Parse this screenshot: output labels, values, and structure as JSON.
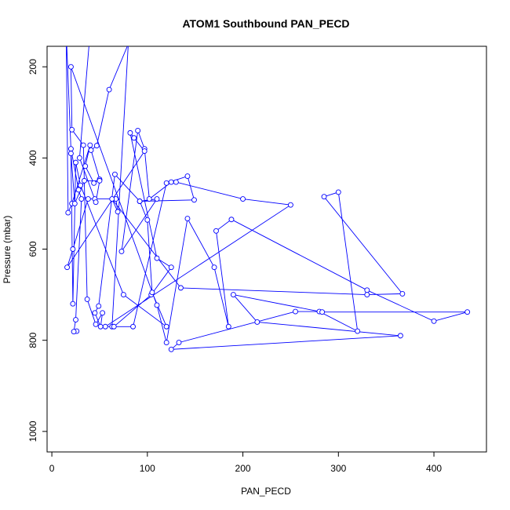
{
  "chart_data": {
    "type": "line",
    "title": "ATOM1 Southbound PAN_PECD",
    "xlabel": "PAN_PECD",
    "ylabel": "Pressure (mbar)",
    "xlim": [
      -5,
      455
    ],
    "ylim": [
      1045,
      155
    ],
    "y_reversed": true,
    "grid": false,
    "line_color": "#0000ff",
    "marker": "open-circle",
    "xticks": [
      0,
      100,
      200,
      300,
      400
    ],
    "yticks": [
      200,
      400,
      600,
      800,
      1000
    ],
    "series": [
      {
        "points": [
          [
            26,
            780
          ],
          [
            23,
            781
          ],
          [
            25,
            755
          ],
          [
            31,
            490
          ],
          [
            28,
            470
          ],
          [
            20,
            380
          ],
          [
            15,
            120
          ],
          [
            17,
            520
          ],
          [
            21,
            500
          ],
          [
            40,
            372
          ],
          [
            35,
            418
          ],
          [
            44,
            455
          ],
          [
            50,
            447
          ],
          [
            41,
            383
          ],
          [
            47,
            373
          ],
          [
            60,
            250
          ],
          [
            80,
            150
          ],
          [
            63,
            770
          ],
          [
            85,
            770
          ],
          [
            120,
            455
          ],
          [
            142,
            440
          ],
          [
            149,
            492
          ],
          [
            92,
            495
          ],
          [
            110,
            490
          ],
          [
            73,
            605
          ],
          [
            90,
            340
          ],
          [
            97,
            380
          ],
          [
            102,
            490
          ],
          [
            125,
            453
          ],
          [
            130,
            453
          ],
          [
            200,
            490
          ],
          [
            250,
            503
          ],
          [
            56,
            770
          ],
          [
            65,
            770
          ],
          [
            104,
            700
          ],
          [
            125,
            640
          ],
          [
            110,
            620
          ],
          [
            82,
            345
          ],
          [
            86,
            356
          ],
          [
            97,
            385
          ],
          [
            16,
            640
          ],
          [
            22,
            600
          ],
          [
            38,
            490
          ],
          [
            45,
            490
          ],
          [
            67,
            490
          ],
          [
            69,
            518
          ],
          [
            63,
            490
          ],
          [
            135,
            685
          ],
          [
            330,
            700
          ],
          [
            367,
            698
          ],
          [
            285,
            485
          ],
          [
            300,
            475
          ],
          [
            320,
            780
          ],
          [
            280,
            737
          ],
          [
            255,
            737
          ],
          [
            133,
            805
          ],
          [
            125,
            820
          ],
          [
            365,
            790
          ],
          [
            215,
            760
          ],
          [
            190,
            700
          ],
          [
            283,
            738
          ],
          [
            435,
            738
          ],
          [
            400,
            758
          ],
          [
            330,
            690
          ],
          [
            188,
            535
          ],
          [
            172,
            560
          ],
          [
            185,
            770
          ],
          [
            170,
            640
          ],
          [
            142,
            533
          ],
          [
            120,
            805
          ],
          [
            110,
            723
          ],
          [
            20,
            200
          ],
          [
            21,
            338
          ],
          [
            33,
            372
          ],
          [
            37,
            710
          ],
          [
            46,
            765
          ],
          [
            53,
            740
          ],
          [
            51,
            770
          ],
          [
            45,
            740
          ],
          [
            49,
            725
          ],
          [
            66,
            436
          ],
          [
            92,
            495
          ],
          [
            100,
            536
          ],
          [
            105,
            695
          ],
          [
            120,
            770
          ],
          [
            75,
            700
          ],
          [
            30,
            460
          ],
          [
            25,
            410
          ],
          [
            22,
            720
          ],
          [
            20,
            390
          ],
          [
            24,
            500
          ],
          [
            34,
            450
          ],
          [
            50,
            450
          ],
          [
            46,
            497
          ],
          [
            29,
            400
          ],
          [
            39,
            150
          ]
        ]
      }
    ]
  }
}
